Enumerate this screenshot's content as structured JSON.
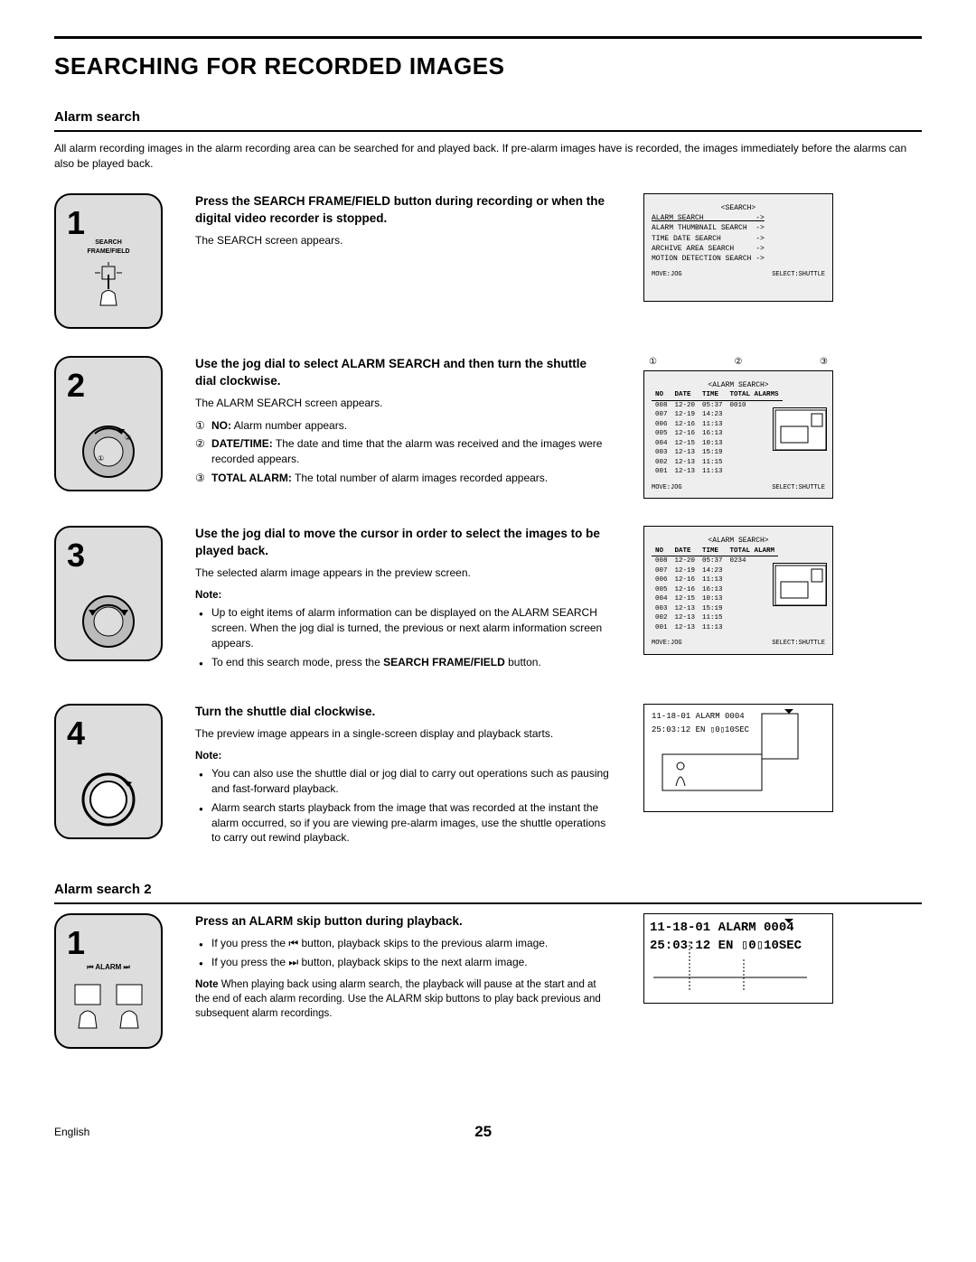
{
  "page": {
    "title": "SEARCHING FOR RECORDED IMAGES",
    "section1_title": "Alarm search",
    "intro": "All alarm recording images in the alarm recording area can be searched for and played back. If pre-alarm images have is recorded, the images immediately before the alarms can also be played back.",
    "section2_title": "Alarm search 2",
    "footer_lang": "English",
    "footer_page": "25"
  },
  "steps": [
    {
      "num": "1",
      "icon_label": "SEARCH\nFRAME/FIELD",
      "heading": "Press the SEARCH FRAME/FIELD button during recording or when the digital video recorder is stopped.",
      "desc": "The SEARCH screen appears.",
      "screen": {
        "title": "<SEARCH>",
        "menu": [
          "ALARM SEARCH            ->",
          "ALARM THUMBNAIL SEARCH  ->",
          "TIME DATE SEARCH        ->",
          "ARCHIVE AREA SEARCH     ->",
          "MOTION DETECTION SEARCH ->"
        ],
        "footer_l": "MOVE:JOG",
        "footer_r": "SELECT:SHUTTLE"
      }
    },
    {
      "num": "2",
      "heading": "Use the jog dial to select ALARM SEARCH and then turn the shuttle dial clockwise.",
      "desc": "The ALARM SEARCH screen appears.",
      "numbered": [
        {
          "marker": "①",
          "label": "NO:",
          "text": " Alarm number appears."
        },
        {
          "marker": "②",
          "label": "DATE/TIME:",
          "text": " The date and time that the alarm was received and the images were recorded appears."
        },
        {
          "marker": "③",
          "label": "TOTAL ALARM:",
          "text": " The total number of alarm images recorded appears."
        }
      ],
      "callouts": [
        "①",
        "②",
        "③"
      ],
      "alarm_screen": {
        "title": "<ALARM SEARCH>",
        "headers": [
          "NO",
          "DATE",
          "TIME",
          "TOTAL ALARMS"
        ],
        "total": "0010",
        "rows": [
          [
            "008",
            "12-20",
            "05:37"
          ],
          [
            "007",
            "12-19",
            "14:23"
          ],
          [
            "006",
            "12-16",
            "11:13"
          ],
          [
            "005",
            "12-16",
            "16:13"
          ],
          [
            "004",
            "12-15",
            "10:13"
          ],
          [
            "003",
            "12-13",
            "15:19"
          ],
          [
            "002",
            "12-13",
            "11:15"
          ],
          [
            "001",
            "12-13",
            "11:13"
          ]
        ],
        "footer_l": "MOVE:JOG",
        "footer_r": "SELECT:SHUTTLE"
      }
    },
    {
      "num": "3",
      "heading": "Use the jog dial to move the cursor in order to select the images to be played back.",
      "desc": "The selected alarm image appears in the preview screen.",
      "note_label": "Note:",
      "bullets": [
        "Up to eight items of alarm information can be displayed on the ALARM SEARCH screen. When the jog dial is turned, the previous or next alarm information screen appears.",
        "To end this search mode, press the <b>SEARCH FRAME/FIELD</b> button."
      ],
      "alarm_screen": {
        "title": "<ALARM SEARCH>",
        "headers": [
          "NO",
          "DATE",
          "TIME",
          "TOTAL ALARM"
        ],
        "total": "0234",
        "rows": [
          [
            "008",
            "12-20",
            "05:37"
          ],
          [
            "007",
            "12-19",
            "14:23"
          ],
          [
            "006",
            "12-16",
            "11:13"
          ],
          [
            "005",
            "12-16",
            "16:13"
          ],
          [
            "004",
            "12-15",
            "10:13"
          ],
          [
            "003",
            "12-13",
            "15:19"
          ],
          [
            "002",
            "12-13",
            "11:15"
          ],
          [
            "001",
            "12-13",
            "11:13"
          ]
        ],
        "footer_l": "MOVE:JOG",
        "footer_r": "SELECT:SHUTTLE"
      }
    },
    {
      "num": "4",
      "heading": "Turn the shuttle dial clockwise.",
      "desc": "The preview image appears in a single-screen display and playback starts.",
      "note_label": "Note:",
      "bullets": [
        "You can also use the shuttle dial or jog dial to carry out operations such as pausing and fast-forward playback.",
        "Alarm search starts playback from the image that was recorded at the instant the alarm occurred, so if you are viewing pre-alarm images, use the shuttle operations to carry out rewind playback."
      ],
      "preview": {
        "overlay_l1": "11-18-01 ALARM  0004",
        "overlay_l2": "25:03:12 EN ▯0▯10SEC"
      }
    }
  ],
  "section2": {
    "step": {
      "num": "1",
      "icon_label": "⏮ ALARM ⏭",
      "heading": "Press an ALARM skip button during playback.",
      "bullets": [
        "If you press the ⏮ button, playback skips to the previous alarm image.",
        "If you press the ⏭ button, playback skips to the next alarm image."
      ],
      "note_prefix": "Note",
      "note_text": " When playing back using alarm search, the playback will pause at the start and at the end of each alarm recording. Use the ALARM skip buttons to play back previous and subsequent alarm recordings.",
      "preview": {
        "overlay_l1": "11-18-01 ALARM  0004",
        "overlay_l2": "25:03:12 EN ▯0▯10SEC"
      }
    }
  },
  "colors": {
    "icon_bg": "#dddddd",
    "screen_bg": "#eeeeee",
    "border": "#000000"
  }
}
